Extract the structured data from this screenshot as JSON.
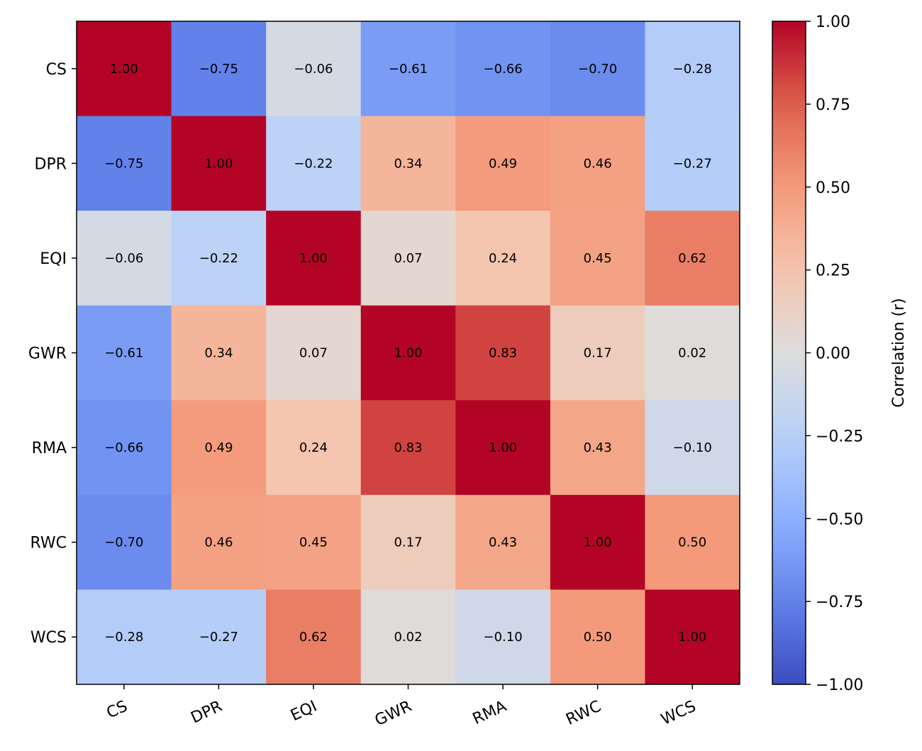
{
  "chart_data": {
    "type": "heatmap",
    "title": "",
    "row_labels": [
      "CS",
      "DPR",
      "EQI",
      "GWR",
      "RMA",
      "RWC",
      "WCS"
    ],
    "col_labels": [
      "CS",
      "DPR",
      "EQI",
      "GWR",
      "RMA",
      "RWC",
      "WCS"
    ],
    "values": [
      [
        1.0,
        -0.75,
        -0.06,
        -0.61,
        -0.66,
        -0.7,
        -0.28
      ],
      [
        -0.75,
        1.0,
        -0.22,
        0.34,
        0.49,
        0.46,
        -0.27
      ],
      [
        -0.06,
        -0.22,
        1.0,
        0.07,
        0.24,
        0.45,
        0.62
      ],
      [
        -0.61,
        0.34,
        0.07,
        1.0,
        0.83,
        0.17,
        0.02
      ],
      [
        -0.66,
        0.49,
        0.24,
        0.83,
        1.0,
        0.43,
        -0.1
      ],
      [
        -0.7,
        0.46,
        0.45,
        0.17,
        0.43,
        1.0,
        0.5
      ],
      [
        -0.28,
        -0.27,
        0.62,
        0.02,
        -0.1,
        0.5,
        1.0
      ]
    ],
    "colormap": "coolwarm",
    "vmin": -1.0,
    "vmax": 1.0,
    "colorbar": {
      "label": "Correlation (r)",
      "ticks": [
        1.0,
        0.75,
        0.5,
        0.25,
        0.0,
        -0.25,
        -0.5,
        -0.75,
        -1.0
      ],
      "tick_labels": [
        "1.00",
        "0.75",
        "0.50",
        "0.25",
        "0.00",
        "−0.25",
        "−0.50",
        "−0.75",
        "−1.00"
      ]
    }
  }
}
